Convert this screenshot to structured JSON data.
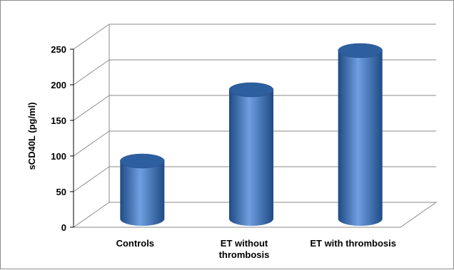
{
  "chart_data": {
    "type": "bar",
    "style": "3d-cylinder",
    "categories": [
      "Controls",
      "ET without thrombosis",
      "ET with thrombosis"
    ],
    "category_label_lines": [
      [
        "Controls"
      ],
      [
        "ET without",
        "thrombosis"
      ],
      [
        "ET with thrombosis"
      ]
    ],
    "values": [
      83,
      183,
      238
    ],
    "title": "",
    "xlabel": "",
    "ylabel": "sCD40L (pg/ml)",
    "ylim": [
      0,
      250
    ],
    "yticks": [
      0,
      50,
      100,
      150,
      200,
      250
    ],
    "grid": true,
    "legend": "none",
    "colors": {
      "bar_body": "#3d74bd",
      "bar_dark": "#1f4a85",
      "bar_light": "#6f9fe0",
      "bar_top": "#2d5f9f",
      "grid": "#8a8a8a",
      "frame": "#8c8c8c"
    }
  }
}
